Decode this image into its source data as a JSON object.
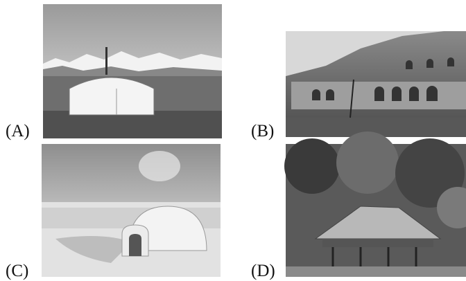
{
  "figures": [
    {
      "label": "(A)"
    },
    {
      "label": "(B)"
    },
    {
      "label": "(C)"
    },
    {
      "label": "(D)"
    }
  ]
}
